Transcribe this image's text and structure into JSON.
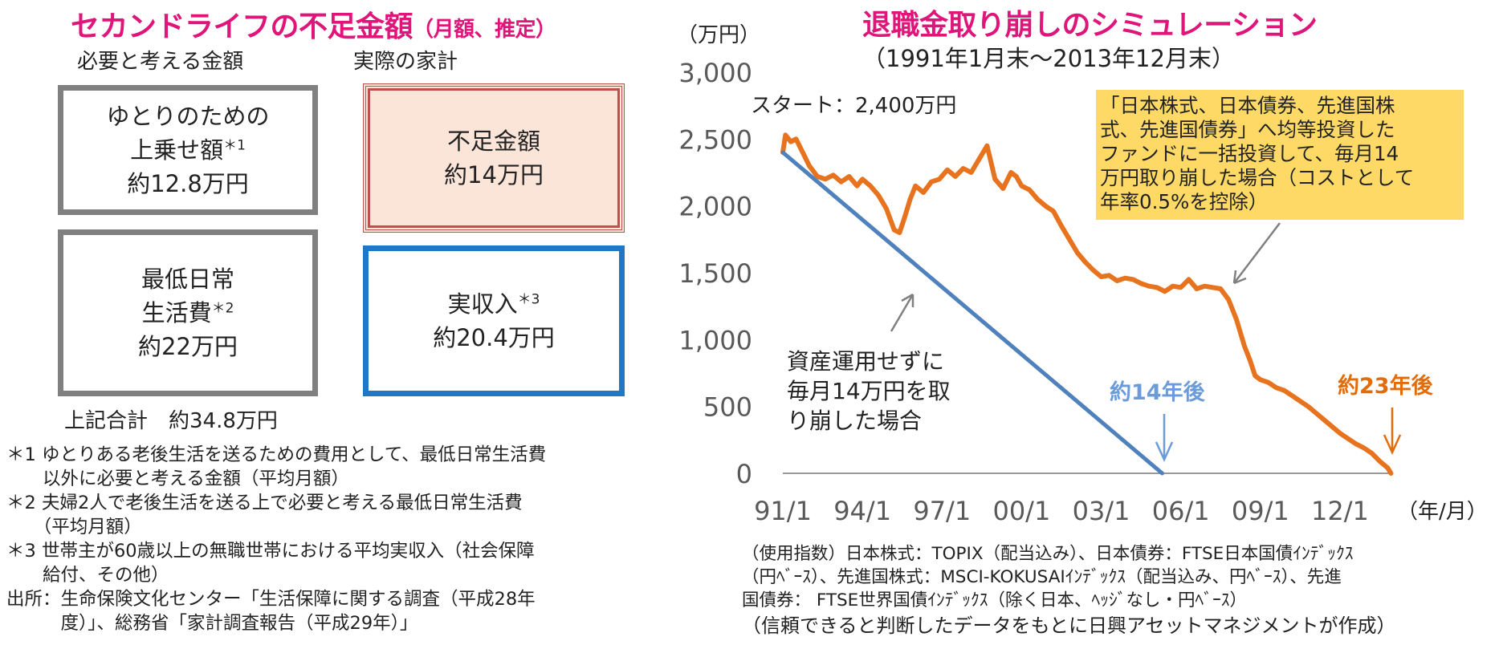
{
  "left": {
    "title": "セカンドライフの不足金額",
    "title_sub": "（月額、推定）",
    "head_needed": "必要と考える金額",
    "head_actual": "実際の家計",
    "box_extra": {
      "line1": "ゆとりのための",
      "line2": "上乗せ額",
      "mark": "＊1",
      "value": "約12.8万円"
    },
    "box_min": {
      "line1": "最低日常",
      "line2": "生活費",
      "mark": "＊2",
      "value": "約22万円"
    },
    "box_shortfall": {
      "line1": "不足金額",
      "value": "約14万円"
    },
    "box_income": {
      "line1": "実収入",
      "mark": "＊3",
      "value": "約20.4万円"
    },
    "total": "上記合計　約34.8万円",
    "notes": [
      "＊1 ゆとりある老後生活を送るための費用として、最低日常生活費",
      "　　以外に必要と考える金額（平均月額）",
      "＊2 夫婦2人で老後生活を送る上で必要と考える最低日常生活費",
      "　　（平均月額）",
      "＊3 世帯主が60歳以上の無職世帯における平均実収入（社会保障",
      "　　給付、その他）",
      "出所：生命保険文化センター「生活保障に関する調査（平成28年",
      "　　　度）」、総務省「家計調査報告（平成29年）」"
    ]
  },
  "right": {
    "title": "退職金取り崩しのシミュレーション",
    "period": "（1991年1月末～2013年12月末）",
    "sources": [
      "（使用指数）日本株式：TOPIX（配当込み）、日本債券：FTSE日本国債ｲﾝﾃﾞｯｸｽ",
      "（円ﾍﾞｰｽ）、先進国株式：MSCI-KOKUSAIｲﾝﾃﾞｯｸｽ（配当込み、円ﾍﾞｰｽ）、先進",
      "国債券： FTSE世界国債ｲﾝﾃﾞｯｸｽ（除く日本、ﾍｯｼﾞなし・円ﾍﾞｰｽ）",
      "（信頼できると判断したデータをもとに日興アセットマネジメントが作成）"
    ]
  },
  "chart_data": {
    "type": "line",
    "ylabel": "（万円）",
    "xlabel": "（年/月）",
    "ylim": [
      0,
      3000
    ],
    "yticks": [
      "0",
      "500",
      "1,000",
      "1,500",
      "2,000",
      "2,500",
      "3,000"
    ],
    "xticks": [
      "91/1",
      "94/1",
      "97/1",
      "00/1",
      "03/1",
      "06/1",
      "09/1",
      "12/1"
    ],
    "grid": false,
    "series": [
      {
        "key": "invest",
        "color": "#e8731e",
        "x": [
          1991.0,
          1991.1,
          1991.3,
          1991.5,
          1991.8,
          1992.0,
          1992.3,
          1992.6,
          1992.9,
          1993.2,
          1993.5,
          1993.8,
          1994.0,
          1994.3,
          1994.6,
          1994.9,
          1995.2,
          1995.4,
          1995.6,
          1995.8,
          1996.0,
          1996.3,
          1996.6,
          1996.9,
          1997.2,
          1997.5,
          1997.8,
          1998.1,
          1998.4,
          1998.7,
          1999.0,
          1999.3,
          1999.6,
          1999.8,
          2000.0,
          2000.3,
          2000.6,
          2000.9,
          2001.2,
          2001.5,
          2001.8,
          2002.1,
          2002.4,
          2002.7,
          2003.0,
          2003.3,
          2003.6,
          2003.9,
          2004.2,
          2004.5,
          2004.8,
          2005.1,
          2005.4,
          2005.7,
          2006.0,
          2006.3,
          2006.6,
          2006.9,
          2007.2,
          2007.5,
          2007.8,
          2008.1,
          2008.4,
          2008.6,
          2008.8,
          2009.0,
          2009.3,
          2009.6,
          2009.9,
          2010.2,
          2010.5,
          2010.8,
          2011.1,
          2011.4,
          2011.7,
          2012.0,
          2012.3,
          2012.6,
          2012.9,
          2013.2,
          2013.5,
          2013.8,
          2013.92
        ],
        "values": [
          2400,
          2530,
          2480,
          2500,
          2380,
          2300,
          2220,
          2200,
          2230,
          2180,
          2220,
          2150,
          2200,
          2150,
          2080,
          1980,
          1820,
          1800,
          1920,
          2050,
          2150,
          2100,
          2180,
          2200,
          2270,
          2220,
          2280,
          2250,
          2350,
          2450,
          2200,
          2130,
          2250,
          2220,
          2150,
          2120,
          2050,
          2000,
          1960,
          1850,
          1750,
          1650,
          1580,
          1520,
          1470,
          1480,
          1440,
          1460,
          1450,
          1420,
          1400,
          1390,
          1360,
          1400,
          1390,
          1450,
          1380,
          1400,
          1390,
          1380,
          1300,
          1150,
          950,
          850,
          730,
          700,
          680,
          640,
          620,
          580,
          540,
          500,
          450,
          400,
          350,
          300,
          260,
          220,
          190,
          150,
          90,
          40,
          0
        ]
      },
      {
        "key": "cash",
        "color": "#4f81bd",
        "x": [
          1991.0,
          2005.3
        ],
        "values": [
          2400,
          0
        ]
      }
    ],
    "annotations": {
      "start": "スタート：2,400万円",
      "callout": [
        "「日本株式、日本債券、先進国株",
        "式、先進国債券」へ均等投資した",
        "ファンドに一括投資して、毎月14",
        "万円取り崩した場合（コストとして",
        "年率0.5%を控除）"
      ],
      "callout_bg": "#ffd966",
      "cash_label": [
        "資産運用せずに",
        "毎月14万円を取",
        "り崩した場合"
      ],
      "label14": "約14年後",
      "label14_color": "#6b9bd8",
      "label23": "約23年後",
      "label23_color": "#e26b0a"
    }
  }
}
